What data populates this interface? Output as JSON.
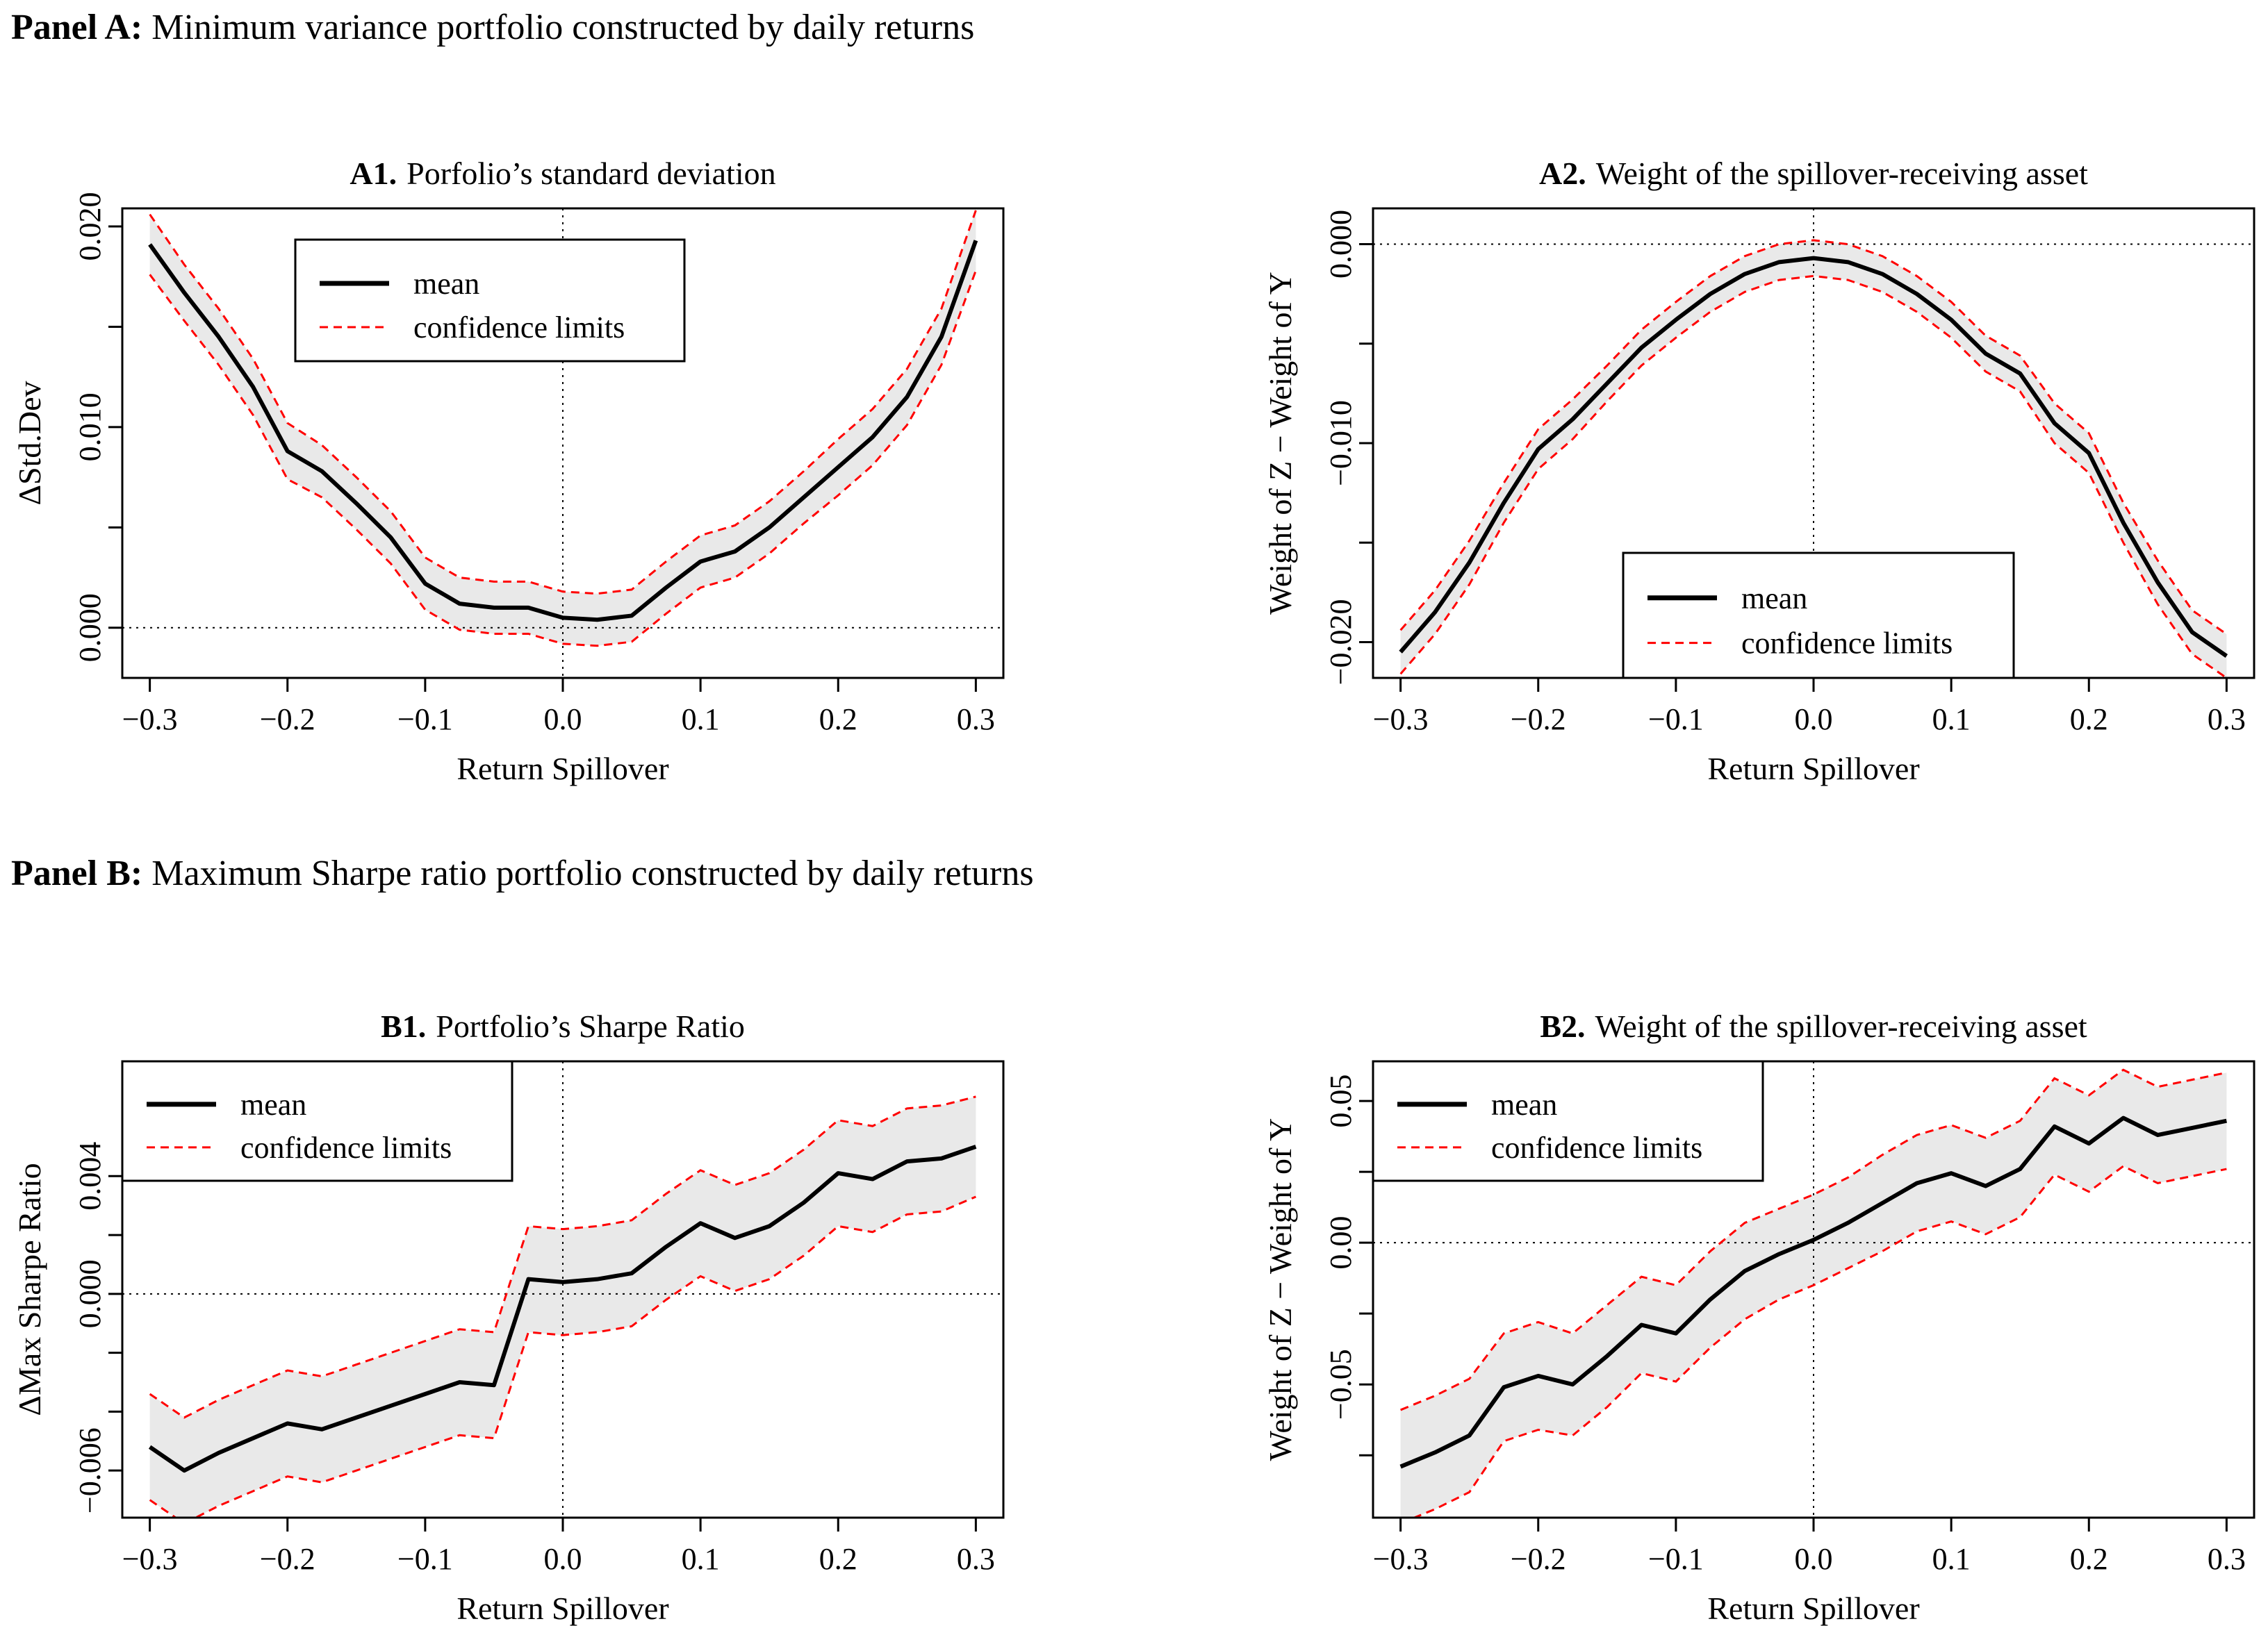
{
  "page": {
    "background": "#ffffff"
  },
  "panel_a_heading": {
    "bold": "Panel A:",
    "rest": " Minimum variance portfolio constructed by daily returns"
  },
  "panel_b_heading": {
    "bold": "Panel B:",
    "rest": " Maximum Sharpe ratio portfolio constructed by daily returns"
  },
  "colors": {
    "mean": "#000000",
    "confidence": "#ff0000",
    "band": "#e9e9e9",
    "text": "#000000"
  },
  "legend": {
    "mean_label": "mean",
    "confidence_label": "confidence limits"
  },
  "chart_data": [
    {
      "id": "A1",
      "type": "line",
      "title_bold": "A1.",
      "title_rest": "Porfolio’s standard deviation",
      "xlabel": "Return Spillover",
      "ylabel": "ΔStd.Dev",
      "xlim": [
        -0.32,
        0.32
      ],
      "ylim": [
        -0.0025,
        0.0209
      ],
      "grid": false,
      "legend_position": "top-center",
      "x": [
        -0.3,
        -0.275,
        -0.25,
        -0.225,
        -0.2,
        -0.175,
        -0.15,
        -0.125,
        -0.1,
        -0.075,
        -0.05,
        -0.025,
        0,
        0.025,
        0.05,
        0.075,
        0.1,
        0.125,
        0.15,
        0.175,
        0.2,
        0.225,
        0.25,
        0.275,
        0.3
      ],
      "series": [
        {
          "name": "mean",
          "values": [
            0.0191,
            0.0167,
            0.0145,
            0.012,
            0.0088,
            0.0078,
            0.0062,
            0.0045,
            0.0022,
            0.0012,
            0.001,
            0.001,
            0.0005,
            0.0004,
            0.0006,
            0.002,
            0.0033,
            0.0038,
            0.005,
            0.0065,
            0.008,
            0.0095,
            0.0115,
            0.0145,
            0.0193
          ]
        },
        {
          "name": "confidence limits",
          "halfwidths": [
            0.0015,
            0.0014,
            0.0014,
            0.0014,
            0.0014,
            0.0013,
            0.0013,
            0.0013,
            0.0013,
            0.0013,
            0.0013,
            0.0013,
            0.0013,
            0.0013,
            0.0013,
            0.0013,
            0.0013,
            0.0013,
            0.0013,
            0.0013,
            0.0014,
            0.0014,
            0.0014,
            0.0014,
            0.0015
          ]
        }
      ],
      "xticks": [
        {
          "v": -0.3,
          "l": "−0.3"
        },
        {
          "v": -0.2,
          "l": "−0.2"
        },
        {
          "v": -0.1,
          "l": "−0.1"
        },
        {
          "v": 0.0,
          "l": "0.0"
        },
        {
          "v": 0.1,
          "l": "0.1"
        },
        {
          "v": 0.2,
          "l": "0.2"
        },
        {
          "v": 0.3,
          "l": "0.3"
        }
      ],
      "yticks_major": [
        {
          "v": 0.0,
          "l": "0.000"
        },
        {
          "v": 0.01,
          "l": "0.010"
        },
        {
          "v": 0.02,
          "l": "0.020"
        }
      ],
      "yticks_minor": [
        0.005,
        0.015
      ],
      "ref_hline": 0.0,
      "ref_vline": 0.0
    },
    {
      "id": "A2",
      "type": "line",
      "title_bold": "A2.",
      "title_rest": "Weight of the spillover-receiving asset",
      "xlabel": "Return Spillover",
      "ylabel": "Weight of Z − Weight of Y",
      "xlim": [
        -0.32,
        0.32
      ],
      "ylim": [
        -0.0218,
        0.0018
      ],
      "grid": false,
      "legend_position": "bottom-center",
      "x": [
        -0.3,
        -0.275,
        -0.25,
        -0.225,
        -0.2,
        -0.175,
        -0.15,
        -0.125,
        -0.1,
        -0.075,
        -0.05,
        -0.025,
        0,
        0.025,
        0.05,
        0.075,
        0.1,
        0.125,
        0.15,
        0.175,
        0.2,
        0.225,
        0.25,
        0.275,
        0.3
      ],
      "series": [
        {
          "name": "mean",
          "values": [
            -0.0205,
            -0.0185,
            -0.016,
            -0.013,
            -0.0103,
            -0.0088,
            -0.007,
            -0.0052,
            -0.0038,
            -0.0025,
            -0.0015,
            -0.0009,
            -0.0007,
            -0.0009,
            -0.0015,
            -0.0025,
            -0.0038,
            -0.0055,
            -0.0065,
            -0.009,
            -0.0105,
            -0.014,
            -0.017,
            -0.0195,
            -0.0207
          ]
        },
        {
          "name": "confidence limits",
          "halfwidths": [
            0.0011,
            0.0011,
            0.0011,
            0.001,
            0.001,
            0.001,
            0.0009,
            0.0009,
            0.0009,
            0.0009,
            0.0009,
            0.0009,
            0.0009,
            0.0009,
            0.0009,
            0.0009,
            0.0009,
            0.0009,
            0.0009,
            0.001,
            0.001,
            0.001,
            0.0011,
            0.0011,
            0.0011
          ]
        }
      ],
      "xticks": [
        {
          "v": -0.3,
          "l": "−0.3"
        },
        {
          "v": -0.2,
          "l": "−0.2"
        },
        {
          "v": -0.1,
          "l": "−0.1"
        },
        {
          "v": 0.0,
          "l": "0.0"
        },
        {
          "v": 0.1,
          "l": "0.1"
        },
        {
          "v": 0.2,
          "l": "0.2"
        },
        {
          "v": 0.3,
          "l": "0.3"
        }
      ],
      "yticks_major": [
        {
          "v": 0.0,
          "l": "0.000"
        },
        {
          "v": -0.01,
          "l": "−0.010"
        },
        {
          "v": -0.02,
          "l": "−0.020"
        }
      ],
      "yticks_minor": [
        -0.005,
        -0.015
      ],
      "ref_hline": 0.0,
      "ref_vline": 0.0
    },
    {
      "id": "B1",
      "type": "line",
      "title_bold": "B1.",
      "title_rest": "Portfolio’s Sharpe Ratio",
      "xlabel": "Return Spillover",
      "ylabel": "ΔMax Sharpe Ratio",
      "xlim": [
        -0.32,
        0.32
      ],
      "ylim": [
        -0.0076,
        0.0079
      ],
      "grid": false,
      "legend_position": "top-left",
      "x": [
        -0.3,
        -0.275,
        -0.25,
        -0.225,
        -0.2,
        -0.175,
        -0.15,
        -0.125,
        -0.1,
        -0.075,
        -0.05,
        -0.025,
        0,
        0.025,
        0.05,
        0.075,
        0.1,
        0.125,
        0.15,
        0.175,
        0.2,
        0.225,
        0.25,
        0.275,
        0.3
      ],
      "series": [
        {
          "name": "mean",
          "values": [
            -0.0052,
            -0.006,
            -0.0054,
            -0.0049,
            -0.0044,
            -0.0046,
            -0.0042,
            -0.0038,
            -0.0034,
            -0.003,
            -0.0031,
            0.0005,
            0.0004,
            0.0005,
            0.0007,
            0.0016,
            0.0024,
            0.0019,
            0.0023,
            0.0031,
            0.0041,
            0.0039,
            0.0045,
            0.0046,
            0.005
          ]
        },
        {
          "name": "confidence limits",
          "halfwidths": [
            0.0018,
            0.0018,
            0.0018,
            0.0018,
            0.0018,
            0.0018,
            0.0018,
            0.0018,
            0.0018,
            0.0018,
            0.0018,
            0.0018,
            0.0018,
            0.0018,
            0.0018,
            0.0018,
            0.0018,
            0.0018,
            0.0018,
            0.0018,
            0.0018,
            0.0018,
            0.0018,
            0.0018,
            0.0017
          ]
        }
      ],
      "xticks": [
        {
          "v": -0.3,
          "l": "−0.3"
        },
        {
          "v": -0.2,
          "l": "−0.2"
        },
        {
          "v": -0.1,
          "l": "−0.1"
        },
        {
          "v": 0.0,
          "l": "0.0"
        },
        {
          "v": 0.1,
          "l": "0.1"
        },
        {
          "v": 0.2,
          "l": "0.2"
        },
        {
          "v": 0.3,
          "l": "0.3"
        }
      ],
      "yticks_major": [
        {
          "v": 0.004,
          "l": "0.004"
        },
        {
          "v": 0.0,
          "l": "0.000"
        },
        {
          "v": -0.006,
          "l": "−0.006"
        }
      ],
      "yticks_minor": [
        0.002,
        -0.002,
        -0.004
      ],
      "ref_hline": 0.0,
      "ref_vline": 0.0
    },
    {
      "id": "B2",
      "type": "line",
      "title_bold": "B2.",
      "title_rest": "Weight of the spillover-receiving asset",
      "xlabel": "Return Spillover",
      "ylabel": "Weight of Z − Weight of Y",
      "xlim": [
        -0.32,
        0.32
      ],
      "ylim": [
        -0.097,
        0.064
      ],
      "grid": false,
      "legend_position": "top-left",
      "x": [
        -0.3,
        -0.275,
        -0.25,
        -0.225,
        -0.2,
        -0.175,
        -0.15,
        -0.125,
        -0.1,
        -0.075,
        -0.05,
        -0.025,
        0,
        0.025,
        0.05,
        0.075,
        0.1,
        0.125,
        0.15,
        0.175,
        0.2,
        0.225,
        0.25,
        0.275,
        0.3
      ],
      "series": [
        {
          "name": "mean",
          "values": [
            -0.079,
            -0.074,
            -0.068,
            -0.051,
            -0.047,
            -0.05,
            -0.04,
            -0.029,
            -0.032,
            -0.02,
            -0.01,
            -0.004,
            0.001,
            0.007,
            0.014,
            0.021,
            0.0245,
            0.02,
            0.026,
            0.041,
            0.035,
            0.044,
            0.038,
            0.0405,
            0.043
          ]
        },
        {
          "name": "confidence limits",
          "halfwidths": [
            0.02,
            0.02,
            0.02,
            0.019,
            0.019,
            0.018,
            0.018,
            0.017,
            0.017,
            0.017,
            0.017,
            0.016,
            0.016,
            0.016,
            0.017,
            0.017,
            0.017,
            0.017,
            0.017,
            0.017,
            0.017,
            0.017,
            0.017,
            0.017,
            0.017
          ]
        }
      ],
      "xticks": [
        {
          "v": -0.3,
          "l": "−0.3"
        },
        {
          "v": -0.2,
          "l": "−0.2"
        },
        {
          "v": -0.1,
          "l": "−0.1"
        },
        {
          "v": 0.0,
          "l": "0.0"
        },
        {
          "v": 0.1,
          "l": "0.1"
        },
        {
          "v": 0.2,
          "l": "0.2"
        },
        {
          "v": 0.3,
          "l": "0.3"
        }
      ],
      "yticks_major": [
        {
          "v": 0.05,
          "l": "0.05"
        },
        {
          "v": 0.0,
          "l": "0.00"
        },
        {
          "v": -0.05,
          "l": "−0.05"
        }
      ],
      "yticks_minor": [
        0.025,
        -0.025,
        -0.075
      ],
      "ref_hline": 0.0,
      "ref_vline": 0.0
    }
  ]
}
